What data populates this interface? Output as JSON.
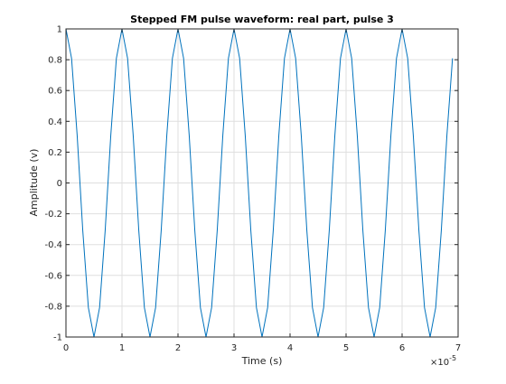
{
  "chart_data": {
    "type": "line",
    "title": "Stepped FM pulse waveform: real part, pulse 3",
    "xlabel": "Time (s)",
    "ylabel": "Amplitude (v)",
    "x_exponent_label": "10",
    "x_exponent_power": "-5",
    "xlim": [
      0,
      7
    ],
    "ylim": [
      -1,
      1
    ],
    "x_scale_note": "x values in units of 1e-5 s",
    "x_ticks": [
      "0",
      "1",
      "2",
      "3",
      "4",
      "5",
      "6",
      "7"
    ],
    "y_ticks": [
      "-1",
      "-0.8",
      "-0.6",
      "-0.4",
      "-0.2",
      "0",
      "0.2",
      "0.4",
      "0.6",
      "0.8",
      "1"
    ],
    "grid": true,
    "line_color": "#0072BD",
    "series": [
      {
        "x": [
          0.0,
          0.1,
          0.2,
          0.3,
          0.4,
          0.5,
          0.6,
          0.7,
          0.8,
          0.9,
          1.0,
          1.1,
          1.2,
          1.3,
          1.4,
          1.5,
          1.6,
          1.7,
          1.8,
          1.9,
          2.0,
          2.1,
          2.2,
          2.3,
          2.4,
          2.5,
          2.6,
          2.7,
          2.8,
          2.9,
          3.0,
          3.1,
          3.2,
          3.3,
          3.4,
          3.5,
          3.6,
          3.7,
          3.8,
          3.9,
          4.0,
          4.1,
          4.2,
          4.3,
          4.4,
          4.5,
          4.6,
          4.7,
          4.8,
          4.9,
          5.0,
          5.1,
          5.2,
          5.3,
          5.4,
          5.5,
          5.6,
          5.7,
          5.8,
          5.9,
          6.0,
          6.1,
          6.2,
          6.3,
          6.4,
          6.5,
          6.6,
          6.7,
          6.8,
          6.9
        ],
        "y": [
          1,
          0.809,
          0.309,
          -0.309,
          -0.809,
          -1,
          -0.809,
          -0.309,
          0.309,
          0.809,
          1,
          0.809,
          0.309,
          -0.309,
          -0.809,
          -1,
          -0.809,
          -0.309,
          0.309,
          0.809,
          1,
          0.809,
          0.309,
          -0.309,
          -0.809,
          -1,
          -0.809,
          -0.309,
          0.309,
          0.809,
          1,
          0.809,
          0.309,
          -0.309,
          -0.809,
          -1,
          -0.809,
          -0.309,
          0.309,
          0.809,
          1,
          0.809,
          0.309,
          -0.309,
          -0.809,
          -1,
          -0.809,
          -0.309,
          0.309,
          0.809,
          1,
          0.809,
          0.309,
          -0.309,
          -0.809,
          -1,
          -0.809,
          -0.309,
          0.309,
          0.809,
          1,
          0.809,
          0.309,
          -0.309,
          -0.809,
          -1,
          -0.809,
          -0.309,
          0.309,
          0.809
        ]
      }
    ]
  }
}
